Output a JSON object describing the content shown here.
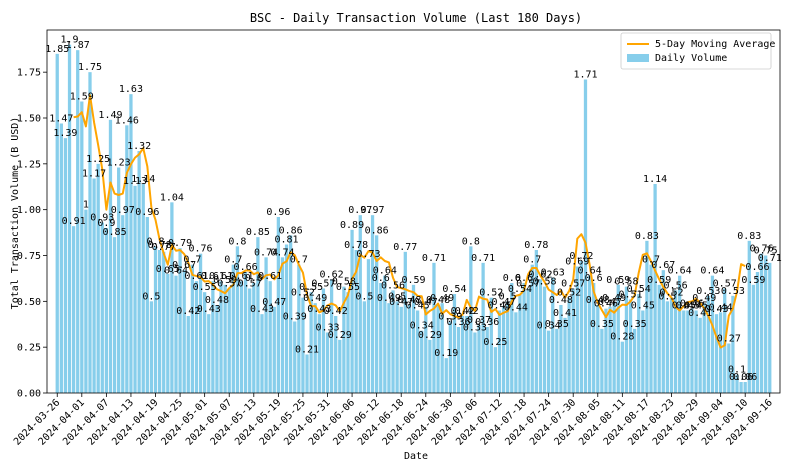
{
  "chart_data": {
    "type": "bar",
    "title": "BSC - Daily Transaction Volume (Last 180 Days)",
    "xlabel": "Date",
    "ylabel": "Total Transaction Volume (B USD)",
    "ylim": [
      0,
      1.98
    ],
    "yticks": [
      "0.00",
      "0.25",
      "0.50",
      "0.75",
      "1.00",
      "1.25",
      "1.50",
      "1.75"
    ],
    "xticks": [
      "2024-03-26",
      "2024-04-01",
      "2024-04-07",
      "2024-04-13",
      "2024-04-19",
      "2024-04-25",
      "2024-05-01",
      "2024-05-07",
      "2024-05-13",
      "2024-05-19",
      "2024-05-25",
      "2024-05-31",
      "2024-06-06",
      "2024-06-12",
      "2024-06-18",
      "2024-06-24",
      "2024-06-30",
      "2024-07-06",
      "2024-07-12",
      "2024-07-18",
      "2024-07-24",
      "2024-07-30",
      "2024-08-05",
      "2024-08-11",
      "2024-08-17",
      "2024-08-23",
      "2024-08-29",
      "2024-09-04",
      "2024-09-10",
      "2024-09-16"
    ],
    "start_date": "2024-03-26",
    "grid": false,
    "legend_position": "top-right",
    "colors": {
      "bar": "#87ceeb",
      "line": "#ffa500"
    },
    "series": [
      {
        "name": "Daily Volume",
        "type": "bar",
        "values": [
          1.85,
          1.47,
          1.39,
          1.9,
          0.91,
          1.87,
          1.59,
          1.0,
          1.75,
          1.17,
          1.25,
          0.93,
          0.9,
          1.49,
          0.85,
          1.23,
          0.97,
          1.46,
          1.63,
          1.13,
          1.32,
          1.14,
          0.96,
          0.5,
          0.8,
          0.78,
          0.77,
          0.65,
          1.04,
          0.64,
          0.79,
          0.67,
          0.42,
          0.7,
          0.61,
          0.76,
          0.55,
          0.43,
          0.61,
          0.48,
          0.61,
          0.59,
          0.57,
          0.7,
          0.8,
          0.61,
          0.66,
          0.57,
          0.6,
          0.85,
          0.43,
          0.74,
          0.61,
          0.47,
          0.96,
          0.74,
          0.81,
          0.86,
          0.39,
          0.7,
          0.52,
          0.21,
          0.55,
          0.49,
          0.43,
          0.57,
          0.33,
          0.62,
          0.42,
          0.29,
          0.58,
          0.55,
          0.89,
          0.78,
          0.97,
          0.5,
          0.73,
          0.97,
          0.86,
          0.6,
          0.64,
          0.49,
          0.56,
          0.5,
          0.47,
          0.77,
          0.48,
          0.59,
          0.45,
          0.34,
          0.47,
          0.29,
          0.71,
          0.48,
          0.49,
          0.19,
          0.39,
          0.54,
          0.36,
          0.42,
          0.42,
          0.8,
          0.33,
          0.37,
          0.71,
          0.36,
          0.52,
          0.25,
          0.45,
          0.47,
          0.5,
          0.6,
          0.44,
          0.54,
          0.6,
          0.57,
          0.7,
          0.78,
          0.62,
          0.58,
          0.34,
          0.63,
          0.35,
          0.48,
          0.41,
          0.52,
          0.57,
          0.69,
          0.72,
          1.71,
          0.64,
          0.6,
          0.48,
          0.35,
          0.46,
          0.47,
          0.49,
          0.59,
          0.28,
          0.58,
          0.51,
          0.35,
          0.54,
          0.45,
          0.83,
          0.7,
          1.14,
          0.59,
          0.67,
          0.5,
          0.52,
          0.56,
          0.64,
          0.45,
          0.45,
          0.46,
          0.45,
          0.41,
          0.49,
          0.53,
          0.64,
          0.43,
          0.44,
          0.57,
          0.27,
          0.53,
          0.1,
          0.06,
          0.06,
          0.83,
          0.59,
          0.66,
          0.76,
          0.75,
          0.71
        ]
      },
      {
        "name": "5-Day Moving Average",
        "type": "line",
        "values": [
          null,
          null,
          null,
          null,
          1.504,
          1.508,
          1.532,
          1.454,
          1.624,
          1.476,
          1.352,
          1.22,
          1.0,
          1.148,
          1.088,
          1.08,
          1.088,
          1.2,
          1.248,
          1.284,
          1.302,
          1.336,
          1.236,
          1.01,
          0.944,
          0.836,
          0.762,
          0.7,
          0.808,
          0.776,
          0.78,
          0.758,
          0.712,
          0.644,
          0.638,
          0.632,
          0.608,
          0.61,
          0.592,
          0.566,
          0.556,
          0.544,
          0.572,
          0.59,
          0.654,
          0.654,
          0.668,
          0.668,
          0.648,
          0.658,
          0.622,
          0.642,
          0.646,
          0.62,
          0.642,
          0.706,
          0.718,
          0.768,
          0.752,
          0.7,
          0.656,
          0.536,
          0.474,
          0.474,
          0.44,
          0.45,
          0.478,
          0.488,
          0.478,
          0.446,
          0.492,
          0.534,
          0.624,
          0.662,
          0.754,
          0.738,
          0.774,
          0.766,
          0.72,
          0.74,
          0.72,
          0.712,
          0.628,
          0.578,
          0.572,
          0.566,
          0.556,
          0.55,
          0.53,
          0.528,
          0.428,
          0.448,
          0.46,
          0.488,
          0.432,
          0.452,
          0.43,
          0.42,
          0.412,
          0.428,
          0.508,
          0.466,
          0.448,
          0.526,
          0.514,
          0.51,
          0.442,
          0.458,
          0.426,
          0.438,
          0.446,
          0.5,
          0.53,
          0.536,
          0.56,
          0.648,
          0.682,
          0.682,
          0.64,
          0.606,
          0.564,
          0.55,
          0.534,
          0.558,
          0.52,
          0.556,
          0.618,
          0.842,
          0.866,
          0.82,
          0.702,
          0.554,
          0.492,
          0.452,
          0.414,
          0.454,
          0.438,
          0.464,
          0.482,
          0.48,
          0.5,
          0.532,
          0.656,
          0.754,
          0.762,
          0.718,
          0.668,
          0.62,
          0.578,
          0.544,
          0.52,
          0.47,
          0.45,
          0.474,
          0.496,
          0.5,
          0.514,
          0.492,
          0.462,
          0.42,
          0.368,
          0.304,
          0.248,
          0.26,
          0.422,
          0.46,
          0.552,
          0.703,
          0.692
        ]
      }
    ]
  }
}
